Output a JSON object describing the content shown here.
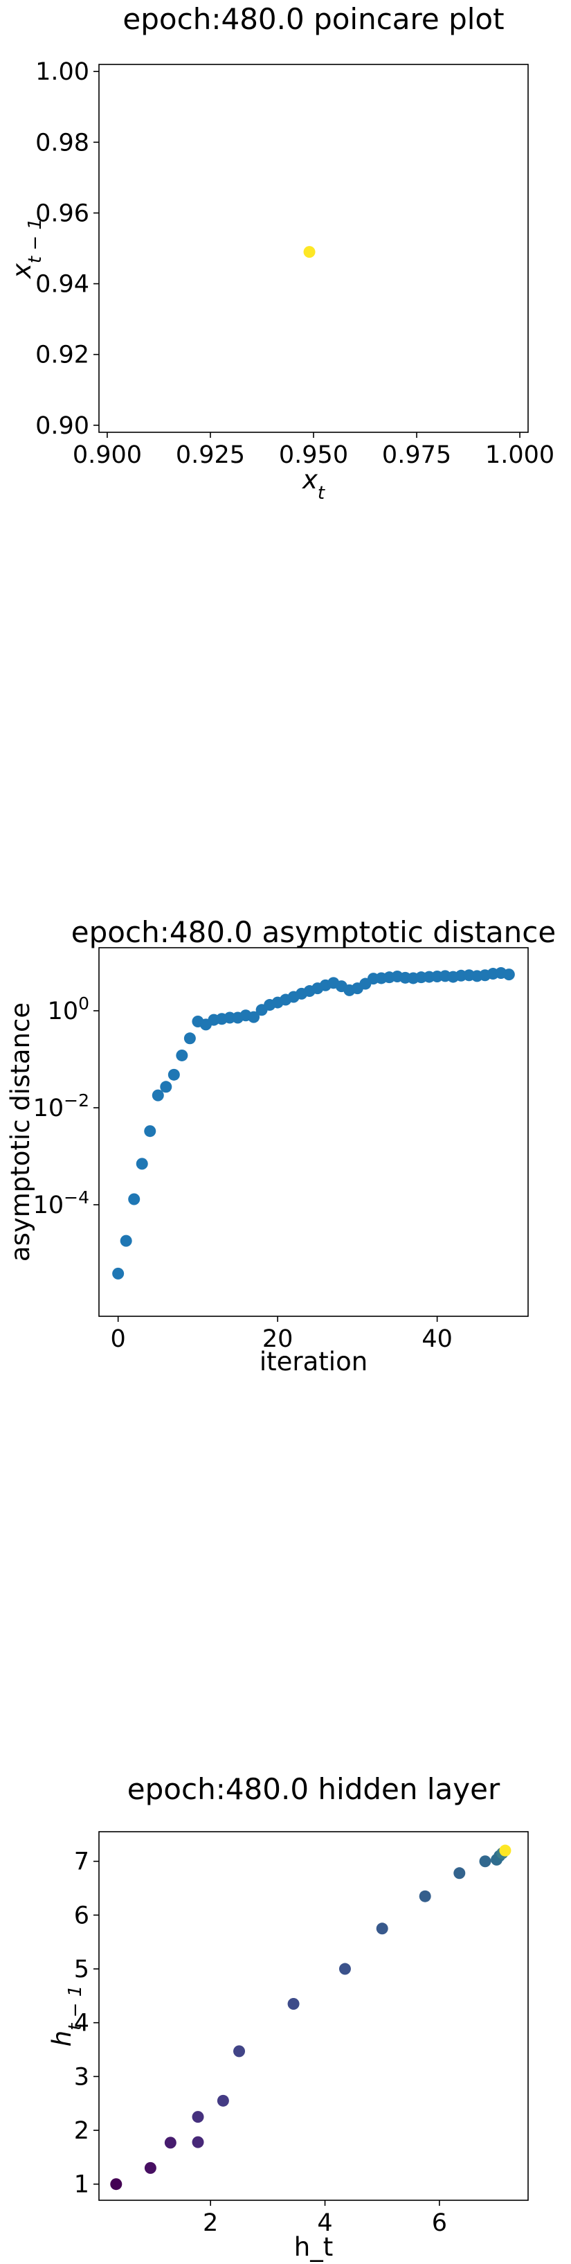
{
  "chart_data": [
    {
      "type": "scatter",
      "title": "epoch:480.0 poincare plot",
      "xlabel_base": "x",
      "xlabel_sub": "t",
      "ylabel_base": "x",
      "ylabel_sub": "t − 1",
      "xlim": [
        0.898,
        1.002
      ],
      "ylim": [
        0.898,
        1.002
      ],
      "xticks": [
        0.9,
        0.925,
        0.95,
        0.975,
        1.0
      ],
      "xtick_labels": [
        "0.900",
        "0.925",
        "0.950",
        "0.975",
        "1.000"
      ],
      "yticks": [
        0.9,
        0.92,
        0.94,
        0.96,
        0.98,
        1.0
      ],
      "ytick_labels": [
        "0.90",
        "0.92",
        "0.94",
        "0.96",
        "0.98",
        "1.00"
      ],
      "points": [
        {
          "x": 0.949,
          "y": 0.949,
          "color": "#fde725"
        }
      ],
      "grid": false
    },
    {
      "type": "scatter",
      "title": "epoch:480.0 asymptotic distance",
      "xlabel": "iteration",
      "ylabel": "asymptotic distance",
      "yscale": "log",
      "xlim": [
        -2.4,
        51.4
      ],
      "ylim_log10": [
        -6.3,
        1.3
      ],
      "xticks": [
        0,
        20,
        40
      ],
      "xtick_labels": [
        "0",
        "20",
        "40"
      ],
      "yticks_log10": [
        0,
        -2,
        -4
      ],
      "ytick_base": "10",
      "ytick_exponents": [
        "0",
        "−2",
        "−4"
      ],
      "color": "#1f77b4",
      "x": [
        0,
        1,
        2,
        3,
        4,
        5,
        6,
        7,
        8,
        9,
        10,
        11,
        12,
        13,
        14,
        15,
        16,
        17,
        18,
        19,
        20,
        21,
        22,
        23,
        24,
        25,
        26,
        27,
        28,
        29,
        30,
        31,
        32,
        33,
        34,
        35,
        36,
        37,
        38,
        39,
        40,
        41,
        42,
        43,
        44,
        45,
        46,
        47,
        48,
        49
      ],
      "y": [
        3.8e-06,
        1.8e-05,
        0.00013,
        0.0007,
        0.0033,
        0.018,
        0.027,
        0.048,
        0.12,
        0.27,
        0.6,
        0.52,
        0.65,
        0.68,
        0.72,
        0.72,
        0.8,
        0.74,
        1.04,
        1.32,
        1.48,
        1.69,
        1.93,
        2.25,
        2.55,
        2.9,
        3.35,
        3.75,
        3.2,
        2.65,
        2.9,
        3.6,
        4.6,
        4.7,
        4.9,
        5.1,
        4.8,
        4.7,
        4.9,
        5.0,
        5.1,
        5.2,
        5.0,
        5.3,
        5.4,
        5.2,
        5.4,
        5.8,
        6.0,
        5.6
      ],
      "grid": false
    },
    {
      "type": "scatter",
      "title": "epoch:480.0 hidden layer",
      "xlabel": "h_t",
      "ylabel_base": "h",
      "ylabel_sub": "t − 1",
      "xlim": [
        0.05,
        7.55
      ],
      "ylim": [
        0.7,
        7.55
      ],
      "xticks": [
        2,
        4,
        6
      ],
      "xtick_labels": [
        "2",
        "4",
        "6"
      ],
      "yticks": [
        1,
        2,
        3,
        4,
        5,
        6,
        7
      ],
      "ytick_labels": [
        "1",
        "2",
        "3",
        "4",
        "5",
        "6",
        "7"
      ],
      "points": [
        {
          "x": 0.35,
          "y": 1.0,
          "color": "#440154"
        },
        {
          "x": 0.95,
          "y": 1.3,
          "color": "#470f62"
        },
        {
          "x": 1.3,
          "y": 1.77,
          "color": "#471c6e"
        },
        {
          "x": 1.78,
          "y": 1.78,
          "color": "#472878"
        },
        {
          "x": 1.78,
          "y": 2.25,
          "color": "#46317e"
        },
        {
          "x": 2.22,
          "y": 2.55,
          "color": "#443b84"
        },
        {
          "x": 2.5,
          "y": 3.47,
          "color": "#414487"
        },
        {
          "x": 3.45,
          "y": 4.35,
          "color": "#3e4c8a"
        },
        {
          "x": 4.35,
          "y": 5.0,
          "color": "#3b528b"
        },
        {
          "x": 5.0,
          "y": 5.75,
          "color": "#38598c"
        },
        {
          "x": 5.75,
          "y": 6.35,
          "color": "#355f8d"
        },
        {
          "x": 6.35,
          "y": 6.78,
          "color": "#33638d"
        },
        {
          "x": 6.8,
          "y": 7.0,
          "color": "#31688e"
        },
        {
          "x": 7.0,
          "y": 7.03,
          "color": "#2f6c8e"
        },
        {
          "x": 7.05,
          "y": 7.1,
          "color": "#2e6f8e"
        },
        {
          "x": 7.1,
          "y": 7.15,
          "color": "#3b7c8a"
        },
        {
          "x": 7.15,
          "y": 7.2,
          "color": "#fde725"
        }
      ],
      "grid": false
    }
  ]
}
